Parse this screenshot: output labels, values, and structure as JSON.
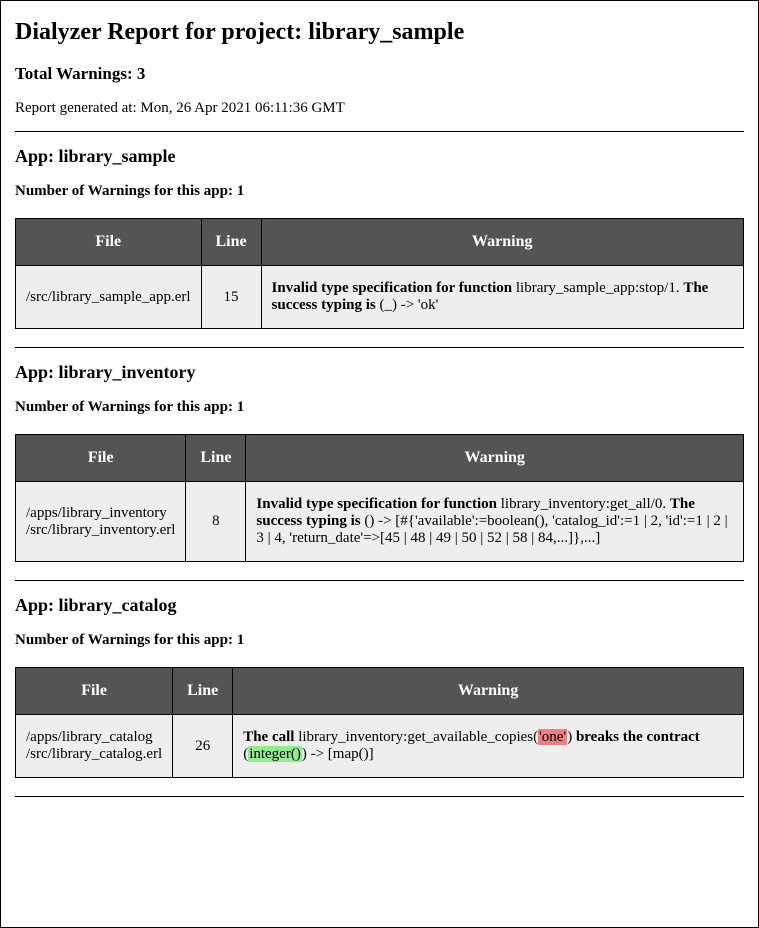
{
  "title": "Dialyzer Report for project: library_sample",
  "total_warnings_label": "Total Warnings: 3",
  "generated_label": "Report generated at: Mon, 26 Apr 2021 06:11:36 GMT",
  "table_headers": {
    "file": "File",
    "line": "Line",
    "warning": "Warning"
  },
  "apps": [
    {
      "title": "App: library_sample",
      "count_label": "Number of Warnings for this app: 1",
      "file": "/src/library_sample_app.erl",
      "line": "15",
      "warning_segments": [
        {
          "text": "Invalid type specification for function ",
          "bold": true
        },
        {
          "text": "library_sample_app:stop/1. "
        },
        {
          "text": "The success typing is ",
          "bold": true
        },
        {
          "text": "(_) -> 'ok'"
        }
      ]
    },
    {
      "title": "App: library_inventory",
      "count_label": "Number of Warnings for this app: 1",
      "file": "/apps/library_inventory\n/src/library_inventory.erl",
      "line": "8",
      "warning_segments": [
        {
          "text": "Invalid type specification for function ",
          "bold": true
        },
        {
          "text": "library_inventory:get_all/0. "
        },
        {
          "text": "The success typing is ",
          "bold": true
        },
        {
          "text": "() -> [#{'available':=boolean(), 'catalog_id':=1 | 2, 'id':=1 | 2 | 3 | 4, 'return_date'=>[45 | 48 | 49 | 50 | 52 | 58 | 84,...]},...]"
        }
      ]
    },
    {
      "title": "App: library_catalog",
      "count_label": "Number of Warnings for this app: 1",
      "file": "/apps/library_catalog\n/src/library_catalog.erl",
      "line": "26",
      "warning_segments": [
        {
          "text": "The call ",
          "bold": true
        },
        {
          "text": "library_inventory:get_available_copies("
        },
        {
          "text": "'one'",
          "hl": "red"
        },
        {
          "text": ") "
        },
        {
          "text": "breaks the contract ",
          "bold": true
        },
        {
          "text": "("
        },
        {
          "text": "integer()",
          "hl": "green"
        },
        {
          "text": ") -> [map()]"
        }
      ]
    }
  ]
}
